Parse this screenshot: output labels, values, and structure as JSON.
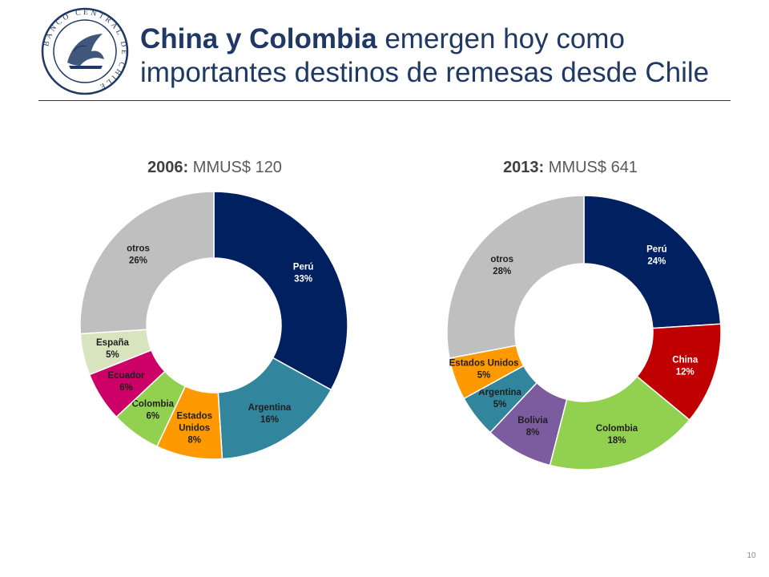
{
  "header": {
    "title_bold": "China y Colombia",
    "title_rest_line1": " emergen hoy como",
    "title_line2": "importantes destinos de remesas desde Chile",
    "seal_text": "BANCO CENTRAL DE CHILE"
  },
  "charts": [
    {
      "year": "2006:",
      "amount": "MMUS$ 120"
    },
    {
      "year": "2013:",
      "amount": "MMUS$ 641"
    }
  ],
  "chart_data": [
    {
      "type": "pie",
      "title": "2006: MMUS$ 120",
      "slices": [
        {
          "label": "Perú",
          "percent_label": "33%",
          "value": 33,
          "color": "#002060",
          "text_color": "#ffffff"
        },
        {
          "label": "Argentina",
          "percent_label": "16%",
          "value": 16,
          "color": "#31859c",
          "text_color": "#1f1f1f"
        },
        {
          "label": "Estados Unidos",
          "percent_label": "8%",
          "value": 8,
          "color": "#ff9900",
          "text_color": "#1f1f1f"
        },
        {
          "label": "Colombia",
          "percent_label": "6%",
          "value": 6,
          "color": "#92d050",
          "text_color": "#1f1f1f"
        },
        {
          "label": "Ecuador",
          "percent_label": "6%",
          "value": 6,
          "color": "#cc0066",
          "text_color": "#1f1f1f"
        },
        {
          "label": "España",
          "percent_label": "5%",
          "value": 5,
          "color": "#d7e4bd",
          "text_color": "#1f1f1f"
        },
        {
          "label": "otros",
          "percent_label": "26%",
          "value": 26,
          "color": "#bfbfbf",
          "text_color": "#1f1f1f"
        }
      ]
    },
    {
      "type": "pie",
      "title": "2013: MMUS$ 641",
      "slices": [
        {
          "label": "Perú",
          "percent_label": "24%",
          "value": 24,
          "color": "#002060",
          "text_color": "#ffffff"
        },
        {
          "label": "China",
          "percent_label": "12%",
          "value": 12,
          "color": "#c00000",
          "text_color": "#ffffff"
        },
        {
          "label": "Colombia",
          "percent_label": "18%",
          "value": 18,
          "color": "#92d050",
          "text_color": "#1f1f1f"
        },
        {
          "label": "Bolivia",
          "percent_label": "8%",
          "value": 8,
          "color": "#7b5c9e",
          "text_color": "#1f1f1f"
        },
        {
          "label": "Argentina",
          "percent_label": "5%",
          "value": 5,
          "color": "#31859c",
          "text_color": "#1f1f1f"
        },
        {
          "label": "Estados Unidos",
          "percent_label": "5%",
          "value": 5,
          "color": "#ff9900",
          "text_color": "#1f1f1f"
        },
        {
          "label": "otros",
          "percent_label": "28%",
          "value": 28,
          "color": "#bfbfbf",
          "text_color": "#1f1f1f"
        }
      ]
    }
  ],
  "footer": {
    "page_number": "10"
  }
}
